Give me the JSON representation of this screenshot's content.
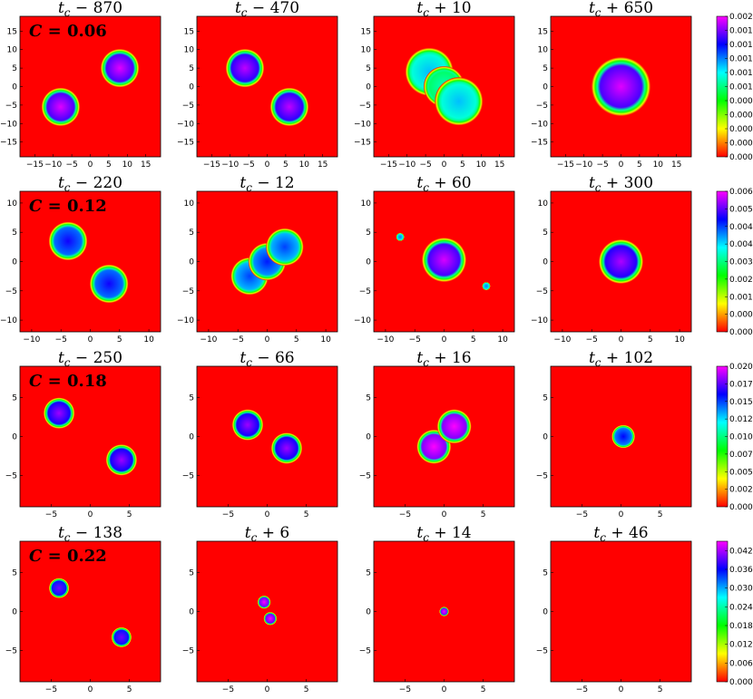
{
  "chart_data": [
    {
      "type": "heatmap",
      "C_label": "C = 0.06",
      "C": 0.06,
      "axis_ticks": [
        -15,
        -10,
        -5,
        0,
        5,
        10,
        15
      ],
      "xlim": [
        -19,
        19
      ],
      "ylim": [
        -19,
        19
      ],
      "colorbar": {
        "range": [
          0,
          0.002
        ],
        "ticks": [
          "0.0000",
          "0.0002",
          "0.0004",
          "0.0006",
          "0.0008",
          "0.0010",
          "0.0012",
          "0.0014",
          "0.0016",
          "0.0018",
          "0.0020"
        ]
      },
      "panels": [
        {
          "sign": "−",
          "offset": "870",
          "blobs": [
            {
              "x": -8,
              "y": -5.5,
              "r": 5.2,
              "v": 0.00195
            },
            {
              "x": 8,
              "y": 5,
              "r": 5.2,
              "v": 0.00195
            }
          ]
        },
        {
          "sign": "−",
          "offset": "470",
          "blobs": [
            {
              "x": -6,
              "y": 5,
              "r": 5.2,
              "v": 0.0019
            },
            {
              "x": 6,
              "y": -5.5,
              "r": 5.2,
              "v": 0.0019
            }
          ]
        },
        {
          "sign": "+",
          "offset": "10",
          "blobs": [
            {
              "x": -4,
              "y": 4,
              "r": 6.5,
              "v": 0.0013
            },
            {
              "x": 0,
              "y": 0,
              "r": 5.5,
              "v": 0.0011
            },
            {
              "x": 4,
              "y": -4,
              "r": 6.5,
              "v": 0.0013
            }
          ]
        },
        {
          "sign": "+",
          "offset": "650",
          "blobs": [
            {
              "x": 0,
              "y": 0,
              "r": 8,
              "v": 0.00195
            }
          ]
        }
      ]
    },
    {
      "type": "heatmap",
      "C_label": "C = 0.12",
      "C": 0.12,
      "axis_ticks": [
        -10,
        -5,
        0,
        5,
        10
      ],
      "xlim": [
        -12,
        12
      ],
      "ylim": [
        -12,
        12
      ],
      "colorbar": {
        "range": [
          0,
          0.0064
        ],
        "ticks": [
          "0.0000",
          "0.0008",
          "0.0016",
          "0.0024",
          "0.0032",
          "0.0040",
          "0.0048",
          "0.0056",
          "0.0064"
        ]
      },
      "panels": [
        {
          "sign": "−",
          "offset": "220",
          "blobs": [
            {
              "x": -3.8,
              "y": 3.5,
              "r": 3.3,
              "v": 0.0052
            },
            {
              "x": 3.2,
              "y": -3.8,
              "r": 3.3,
              "v": 0.0052
            }
          ]
        },
        {
          "sign": "−",
          "offset": "12",
          "blobs": [
            {
              "x": -3,
              "y": -2.5,
              "r": 3.2,
              "v": 0.0048
            },
            {
              "x": 0,
              "y": 0,
              "r": 3.2,
              "v": 0.005
            },
            {
              "x": 3,
              "y": 2.5,
              "r": 3.2,
              "v": 0.0048
            }
          ]
        },
        {
          "sign": "+",
          "offset": "60",
          "blobs": [
            {
              "x": 0,
              "y": 0.3,
              "r": 3.8,
              "v": 0.0062
            },
            {
              "x": -7.5,
              "y": 4.2,
              "r": 0.7,
              "v": 0.0045
            },
            {
              "x": 7.2,
              "y": -4.2,
              "r": 0.7,
              "v": 0.0045
            }
          ]
        },
        {
          "sign": "+",
          "offset": "300",
          "blobs": [
            {
              "x": 0,
              "y": 0,
              "r": 3.8,
              "v": 0.006
            }
          ]
        }
      ]
    },
    {
      "type": "heatmap",
      "C_label": "C = 0.18",
      "C": 0.18,
      "axis_ticks": [
        -5,
        0,
        5
      ],
      "xlim": [
        -9,
        9
      ],
      "ylim": [
        -9,
        9
      ],
      "colorbar": {
        "range": [
          0,
          0.02
        ],
        "ticks": [
          "0.0000",
          "0.0025",
          "0.0050",
          "0.0075",
          "0.0100",
          "0.0125",
          "0.0150",
          "0.0175",
          "0.0200"
        ]
      },
      "panels": [
        {
          "sign": "−",
          "offset": "250",
          "blobs": [
            {
              "x": -4,
              "y": 3,
              "r": 2.0,
              "v": 0.0185
            },
            {
              "x": 4,
              "y": -3,
              "r": 2.0,
              "v": 0.0185
            }
          ]
        },
        {
          "sign": "−",
          "offset": "66",
          "blobs": [
            {
              "x": -2.5,
              "y": 1.5,
              "r": 2.0,
              "v": 0.0185
            },
            {
              "x": 2.5,
              "y": -1.5,
              "r": 2.0,
              "v": 0.0185
            }
          ]
        },
        {
          "sign": "+",
          "offset": "16",
          "blobs": [
            {
              "x": -1.3,
              "y": -1.3,
              "r": 2.2,
              "v": 0.0205
            },
            {
              "x": 1.3,
              "y": 1.3,
              "r": 2.2,
              "v": 0.0205
            }
          ]
        },
        {
          "sign": "+",
          "offset": "102",
          "blobs": [
            {
              "x": 0.3,
              "y": 0,
              "r": 1.5,
              "v": 0.016
            }
          ]
        }
      ]
    },
    {
      "type": "heatmap",
      "C_label": "C = 0.22",
      "C": 0.22,
      "axis_ticks": [
        -5,
        0,
        5
      ],
      "xlim": [
        -9,
        9
      ],
      "ylim": [
        -9,
        9
      ],
      "colorbar": {
        "range": [
          0,
          0.045
        ],
        "ticks": [
          "0.000",
          "0.006",
          "0.012",
          "0.018",
          "0.024",
          "0.030",
          "0.036",
          "0.042"
        ]
      },
      "panels": [
        {
          "sign": "−",
          "offset": "138",
          "blobs": [
            {
              "x": -4,
              "y": 3,
              "r": 1.3,
              "v": 0.04
            },
            {
              "x": 4,
              "y": -3.3,
              "r": 1.3,
              "v": 0.04
            }
          ]
        },
        {
          "sign": "+",
          "offset": "6",
          "blobs": [
            {
              "x": -0.4,
              "y": 1.2,
              "r": 0.85,
              "v": 0.045
            },
            {
              "x": 0.4,
              "y": -0.9,
              "r": 0.85,
              "v": 0.045
            }
          ]
        },
        {
          "sign": "+",
          "offset": "14",
          "blobs": [
            {
              "x": 0,
              "y": 0,
              "r": 0.6,
              "v": 0.045
            }
          ]
        },
        {
          "sign": "+",
          "offset": "46",
          "blobs": []
        }
      ]
    }
  ],
  "colormap": [
    "#ff0000",
    "#ffff00",
    "#00ff00",
    "#00ffff",
    "#0000ff",
    "#ff00ff"
  ]
}
